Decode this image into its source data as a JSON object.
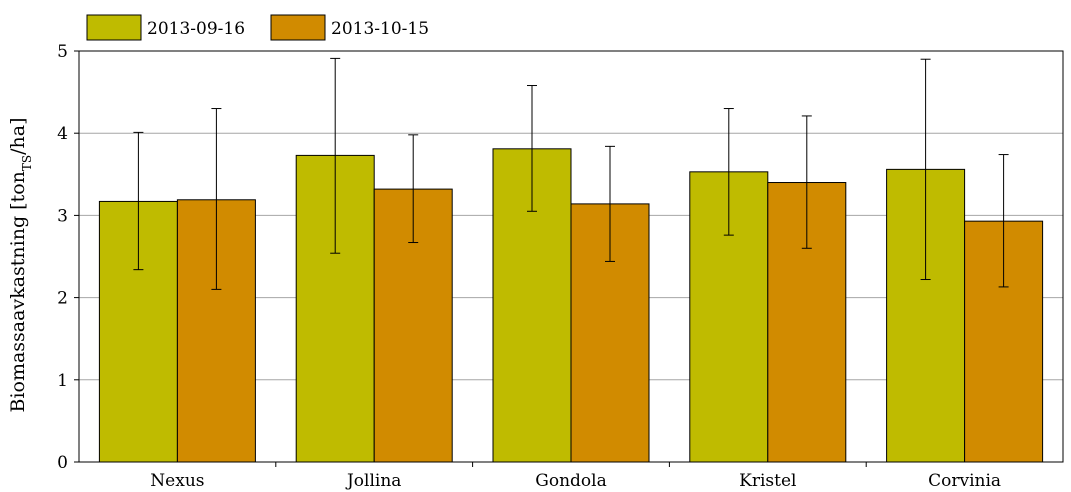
{
  "chart_data": {
    "type": "bar",
    "categories": [
      "Nexus",
      "Jollina",
      "Gondola",
      "Kristel",
      "Corvinia"
    ],
    "series": [
      {
        "name": "2013-09-16",
        "color": "#bfbb00",
        "values": [
          3.17,
          3.73,
          3.81,
          3.53,
          3.56
        ],
        "err_low": [
          2.34,
          2.54,
          3.05,
          2.76,
          2.22
        ],
        "err_high": [
          4.01,
          4.91,
          4.58,
          4.3,
          4.9
        ]
      },
      {
        "name": "2013-10-15",
        "color": "#d18b00",
        "values": [
          3.19,
          3.32,
          3.14,
          3.4,
          2.93
        ],
        "err_low": [
          2.1,
          2.67,
          2.44,
          2.6,
          2.13
        ],
        "err_high": [
          4.3,
          3.98,
          3.84,
          4.21,
          3.74
        ]
      }
    ],
    "ylim": [
      0,
      5
    ],
    "yticks": [
      "0",
      "1",
      "2",
      "3",
      "4",
      "5"
    ],
    "ylabel": {
      "main": "Biomassaavkastning [ton",
      "sub": "TS",
      "end": "/ha]"
    },
    "grid": "horizontal",
    "legend_position": "top-left"
  }
}
